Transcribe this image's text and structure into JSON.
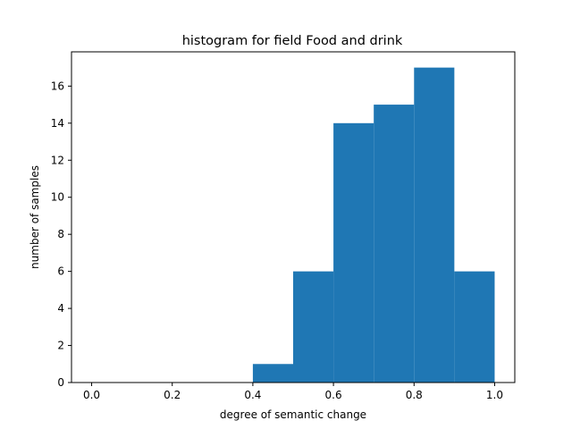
{
  "chart_data": {
    "type": "bar",
    "title": "histogram for field Food and drink",
    "xlabel": "degree of semantic change",
    "ylabel": "number of samples",
    "bins": [
      {
        "x0": 0.0,
        "x1": 0.1,
        "count": 0
      },
      {
        "x0": 0.1,
        "x1": 0.2,
        "count": 0
      },
      {
        "x0": 0.2,
        "x1": 0.3,
        "count": 0
      },
      {
        "x0": 0.3,
        "x1": 0.4,
        "count": 0
      },
      {
        "x0": 0.4,
        "x1": 0.5,
        "count": 1
      },
      {
        "x0": 0.5,
        "x1": 0.6,
        "count": 6
      },
      {
        "x0": 0.6,
        "x1": 0.7,
        "count": 14
      },
      {
        "x0": 0.7,
        "x1": 0.8,
        "count": 15
      },
      {
        "x0": 0.8,
        "x1": 0.9,
        "count": 17
      },
      {
        "x0": 0.9,
        "x1": 1.0,
        "count": 6
      }
    ],
    "xlim": [
      -0.05,
      1.05
    ],
    "ylim": [
      0,
      17.85
    ],
    "xticks": [
      0.0,
      0.2,
      0.4,
      0.6,
      0.8,
      1.0
    ],
    "xtick_labels": [
      "0.0",
      "0.2",
      "0.4",
      "0.6",
      "0.8",
      "1.0"
    ],
    "yticks": [
      0,
      2,
      4,
      6,
      8,
      10,
      12,
      14,
      16
    ],
    "ytick_labels": [
      "0",
      "2",
      "4",
      "6",
      "8",
      "10",
      "12",
      "14",
      "16"
    ],
    "grid": false,
    "bar_color": "#1f77b4",
    "axis_color": "#000000"
  }
}
